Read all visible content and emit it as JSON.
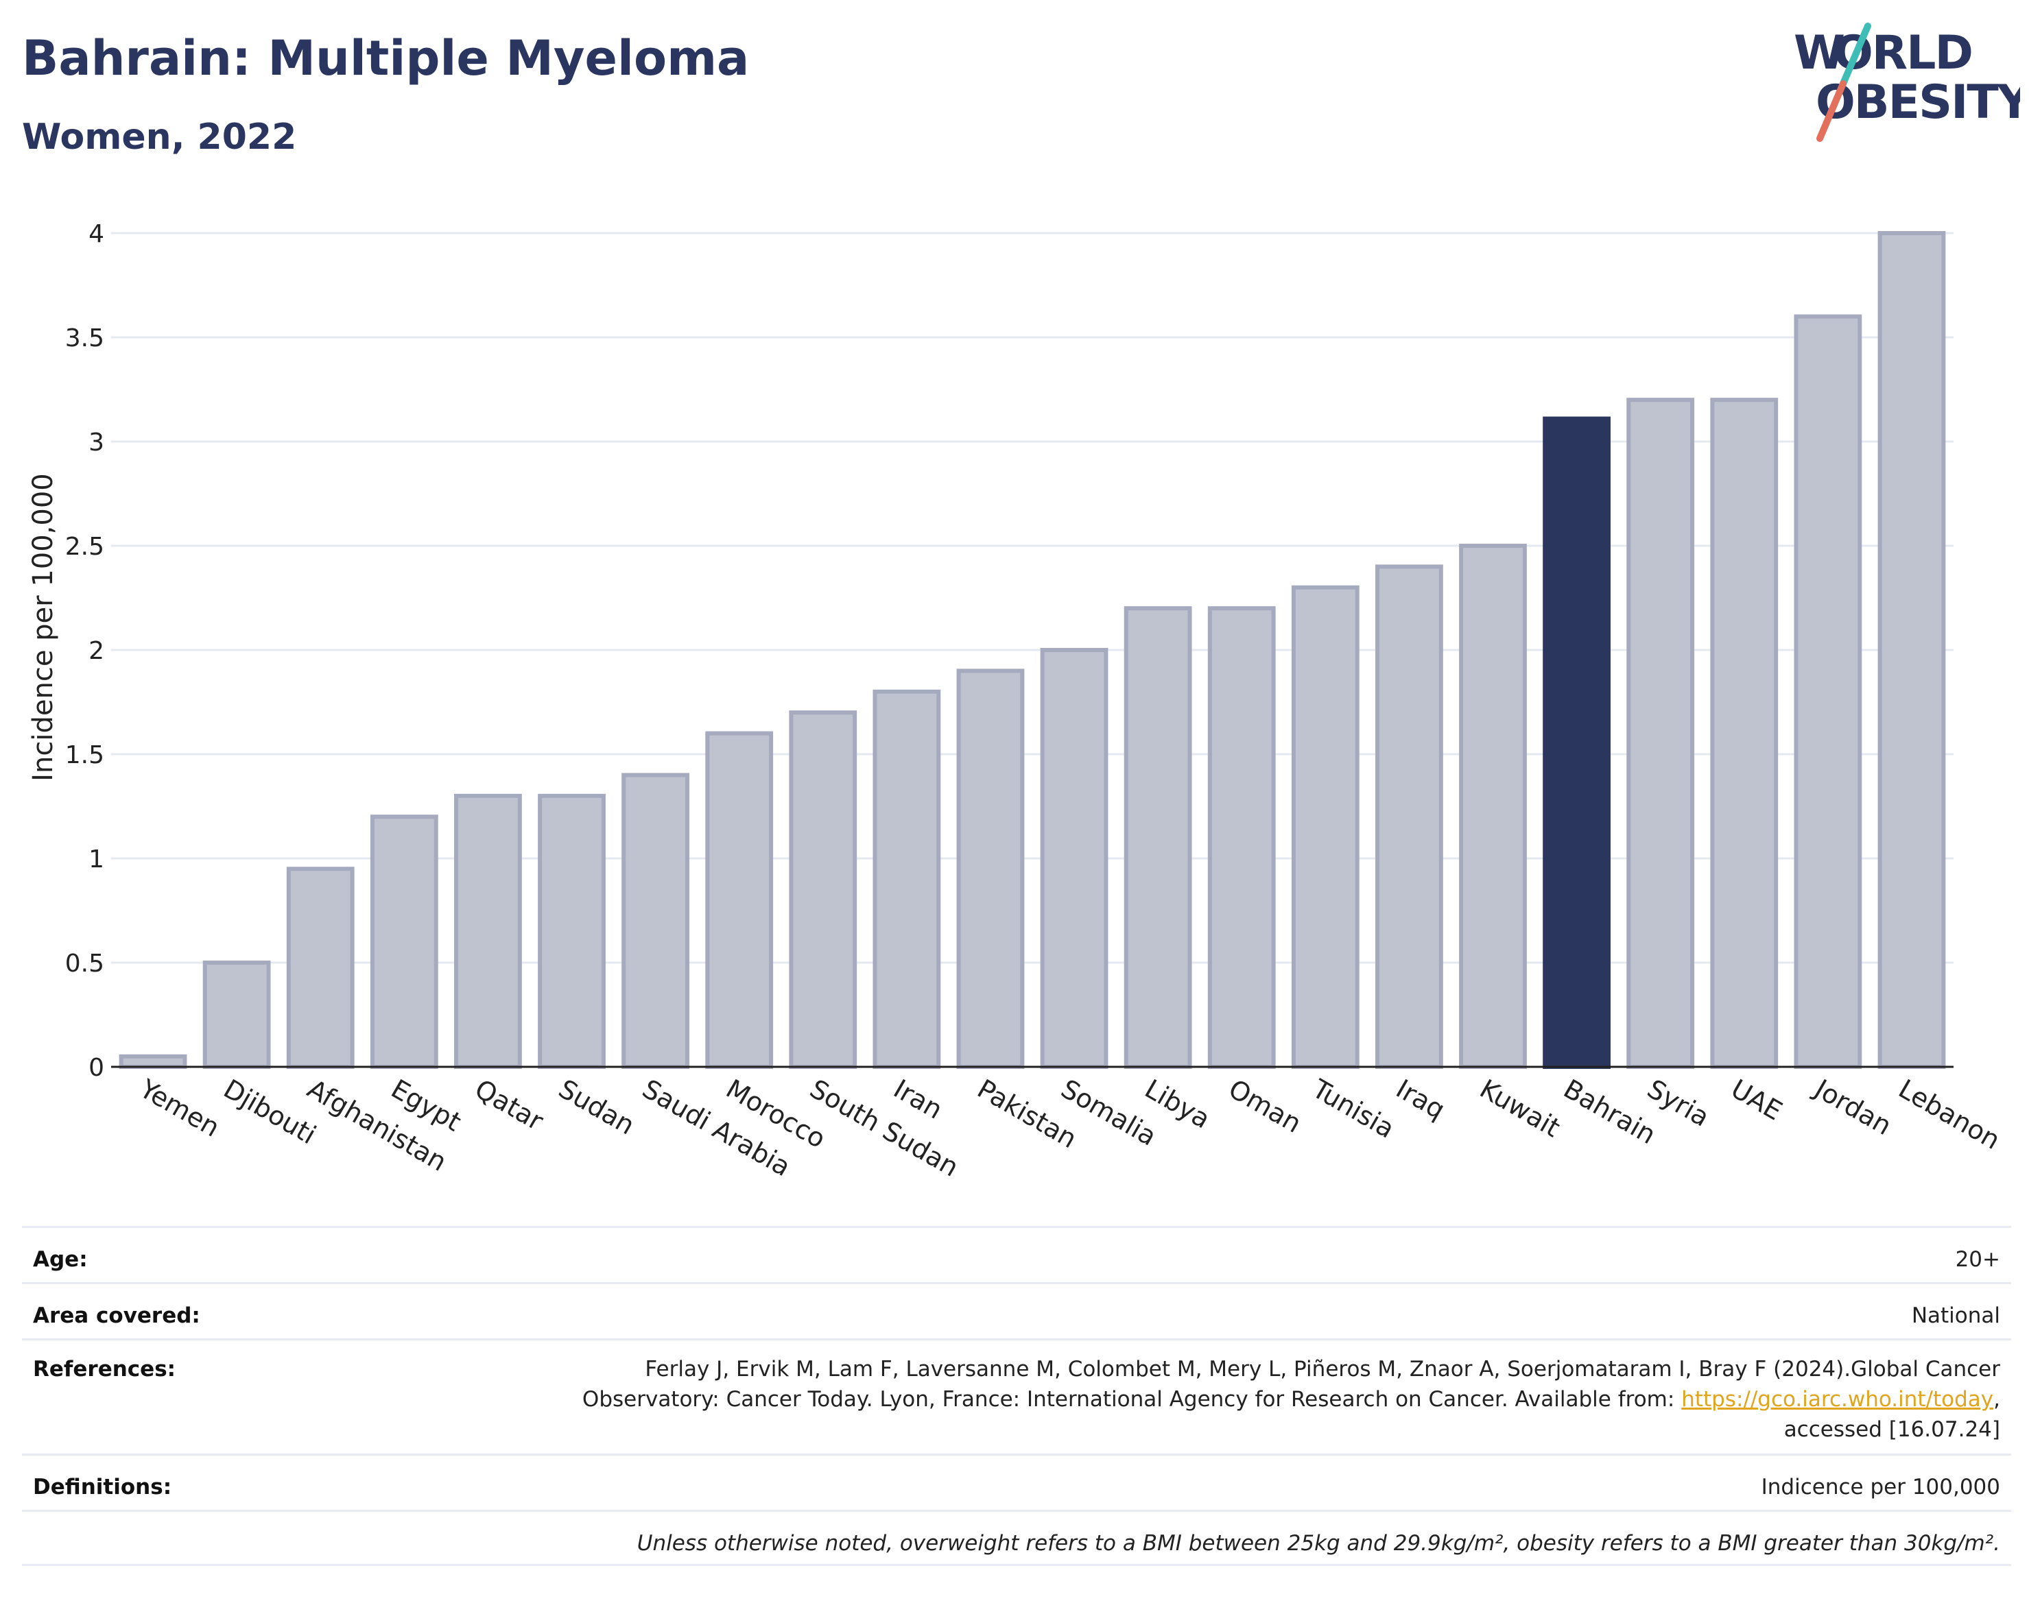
{
  "header": {
    "title": "Bahrain: Multiple Myeloma",
    "subtitle": "Women, 2022",
    "logo_text": "WORLD OBESITY"
  },
  "colors": {
    "highlight": "#2b365f",
    "bar_fill": "#bfc2cf",
    "bar_stroke": "#a6aabf",
    "title": "#2a3560",
    "logo_accent_teal": "#3dbdb5",
    "logo_accent_coral": "#e2705d",
    "link": "#e0a41d"
  },
  "chart_data": {
    "type": "bar",
    "ylabel": "Incidence per 100,000",
    "xlabel": "",
    "ylim": [
      0,
      4
    ],
    "yticks": [
      0,
      0.5,
      1,
      1.5,
      2,
      2.5,
      3,
      3.5,
      4
    ],
    "ytick_labels": [
      "0",
      "0.5",
      "1",
      "1.5",
      "2",
      "2.5",
      "3",
      "3.5",
      "4"
    ],
    "grid": "horizontal",
    "highlight": "Bahrain",
    "categories": [
      "Yemen",
      "Djibouti",
      "Afghanistan",
      "Egypt",
      "Qatar",
      "Sudan",
      "Saudi Arabia",
      "Morocco",
      "South Sudan",
      "Iran",
      "Pakistan",
      "Somalia",
      "Libya",
      "Oman",
      "Tunisia",
      "Iraq",
      "Kuwait",
      "Bahrain",
      "Syria",
      "UAE",
      "Jordan",
      "Lebanon"
    ],
    "values": [
      0.05,
      0.5,
      0.95,
      1.2,
      1.3,
      1.3,
      1.4,
      1.6,
      1.7,
      1.8,
      1.9,
      2.0,
      2.2,
      2.2,
      2.3,
      2.4,
      2.5,
      3.11,
      3.2,
      3.2,
      3.6,
      4.0
    ]
  },
  "meta": {
    "age_label": "Age:",
    "age_value": "20+",
    "area_label": "Area covered:",
    "area_value": "National",
    "references_label": "References:",
    "references_line1": "Ferlay J, Ervik M, Lam F, Laversanne M, Colombet M, Mery L, Piñeros M, Znaor A, Soerjomataram I, Bray F (2024).Global Cancer",
    "references_line2": "Observatory: Cancer Today. Lyon, France: International Agency for Research on Cancer. Available from: ",
    "references_link": "https://gco.iarc.who.int/today",
    "references_line2_end": ",",
    "references_line3": "accessed [16.07.24]",
    "definitions_label": "Definitions:",
    "definitions_value": "Indicence per 100,000",
    "note": "Unless otherwise noted, overweight refers to a BMI between 25kg and 29.9kg/m², obesity refers to a BMI greater than 30kg/m²."
  }
}
